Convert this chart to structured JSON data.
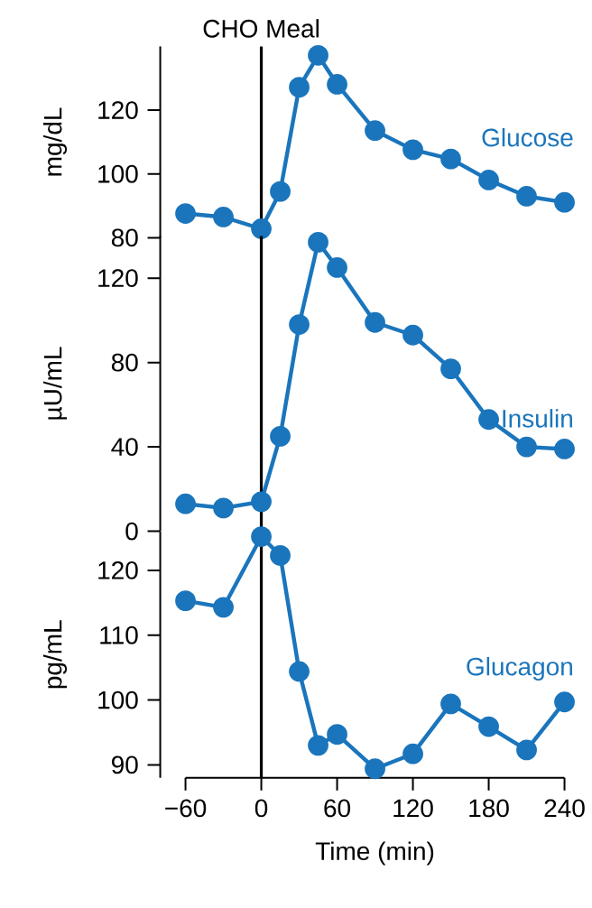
{
  "chart_data": [
    {
      "type": "line",
      "ylabel": "mg/dL",
      "x": [
        -60,
        -30,
        0,
        15,
        30,
        45,
        60,
        90,
        120,
        150,
        180,
        210,
        240
      ],
      "xlim": [
        -60,
        240
      ],
      "ylim": [
        80,
        140
      ],
      "yticks": [
        80,
        100,
        120
      ],
      "tick_labels": "y",
      "marker": "circle",
      "line_style": "solid",
      "ref_lines": [
        {
          "axis": "x",
          "value": 0,
          "label": "CHO Meal",
          "color": "#000000"
        }
      ],
      "series": [
        {
          "name": "Glucose",
          "color": "#1a75bc",
          "values": [
            87.6,
            86.5,
            82.8,
            94.5,
            127.2,
            137.2,
            128.1,
            113.6,
            107.6,
            104.7,
            98.1,
            93.0,
            91.1
          ]
        }
      ]
    },
    {
      "type": "line",
      "ylabel": "µU/mL",
      "x": [
        -60,
        -30,
        0,
        15,
        30,
        45,
        60,
        90,
        120,
        150,
        180,
        210,
        240
      ],
      "xlim": [
        -60,
        240
      ],
      "ylim": [
        0,
        140
      ],
      "yticks": [
        0,
        40,
        80,
        120
      ],
      "tick_labels": "y",
      "marker": "circle",
      "line_style": "solid",
      "ref_lines": [
        {
          "axis": "x",
          "value": 0,
          "color": "#000000"
        }
      ],
      "series": [
        {
          "name": "Insulin",
          "color": "#1a75bc",
          "values": [
            13,
            11,
            14,
            45,
            98,
            137,
            125,
            99,
            93,
            77,
            53,
            40,
            39
          ]
        }
      ]
    },
    {
      "type": "line",
      "ylabel": "pg/mL",
      "xlabel": "Time (min)",
      "x": [
        -60,
        -30,
        0,
        15,
        30,
        45,
        60,
        90,
        120,
        150,
        180,
        210,
        240
      ],
      "xlim": [
        -60,
        240
      ],
      "ylim": [
        88,
        126
      ],
      "yticks": [
        90,
        100,
        110,
        120
      ],
      "xticks": [
        {
          "value": -60,
          "label": "−60"
        },
        0,
        60,
        120,
        180,
        240
      ],
      "marker": "circle",
      "line_style": "solid",
      "ref_lines": [
        {
          "axis": "x",
          "value": 0,
          "color": "#000000"
        }
      ],
      "series": [
        {
          "name": "Glucagon",
          "color": "#1a75bc",
          "values": [
            115.3,
            114.3,
            125.2,
            122.3,
            104.4,
            93.0,
            94.7,
            89.4,
            91.7,
            99.4,
            95.9,
            92.3,
            99.7
          ]
        }
      ]
    }
  ]
}
